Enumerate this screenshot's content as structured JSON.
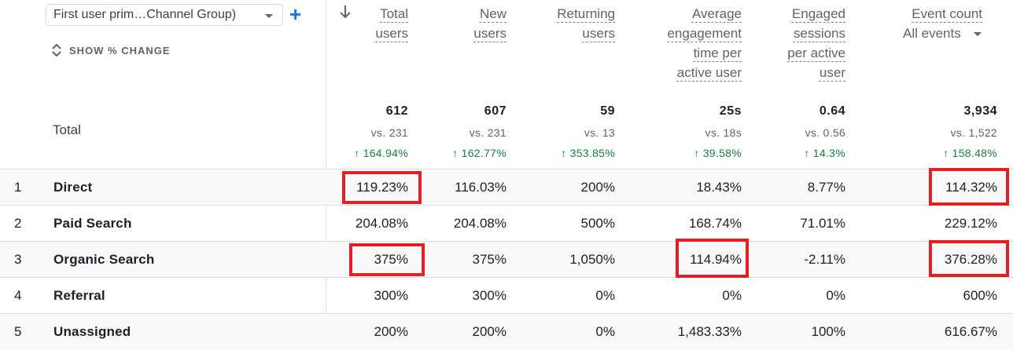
{
  "toolbar": {
    "dimension_label": "First user prim…Channel Group)",
    "add_label": "+",
    "show_change_label": "SHOW % CHANGE"
  },
  "columns": [
    {
      "lines": [
        "Total",
        "users"
      ]
    },
    {
      "lines": [
        "New",
        "users"
      ]
    },
    {
      "lines": [
        "Returning",
        "users"
      ]
    },
    {
      "lines": [
        "Average",
        "engagement",
        "time per",
        "active user"
      ]
    },
    {
      "lines": [
        "Engaged",
        "sessions",
        "per active",
        "user"
      ]
    },
    {
      "lines": [
        "Event count"
      ],
      "filter": "All events"
    }
  ],
  "totals": {
    "label": "Total",
    "values": [
      "612",
      "607",
      "59",
      "25s",
      "0.64",
      "3,934"
    ],
    "vs": [
      "vs. 231",
      "vs. 231",
      "vs. 13",
      "vs. 18s",
      "vs. 0.56",
      "vs. 1,522"
    ],
    "changes": [
      "↑ 164.94%",
      "↑ 162.77%",
      "↑ 353.85%",
      "↑ 39.58%",
      "↑ 14.3%",
      "↑ 158.48%"
    ]
  },
  "rows": [
    {
      "index": "1",
      "name": "Direct",
      "values": [
        "119.23%",
        "116.03%",
        "200%",
        "18.43%",
        "8.77%",
        "114.32%"
      ]
    },
    {
      "index": "2",
      "name": "Paid Search",
      "values": [
        "204.08%",
        "204.08%",
        "500%",
        "168.74%",
        "71.01%",
        "229.12%"
      ]
    },
    {
      "index": "3",
      "name": "Organic Search",
      "values": [
        "375%",
        "375%",
        "1,050%",
        "114.94%",
        "-2.11%",
        "376.28%"
      ]
    },
    {
      "index": "4",
      "name": "Referral",
      "values": [
        "300%",
        "300%",
        "0%",
        "0%",
        "0%",
        "600%"
      ]
    },
    {
      "index": "5",
      "name": "Unassigned",
      "values": [
        "200%",
        "200%",
        "0%",
        "1,483.33%",
        "100%",
        "616.67%"
      ]
    }
  ],
  "colors": {
    "highlight": "#e31e24",
    "positive": "#188038",
    "accent": "#1a73e8",
    "row_shade": "#f8f9fa"
  },
  "icons": [
    "chevron-down-icon",
    "plus-icon",
    "unfold-icon",
    "sort-down-arrow-icon"
  ]
}
